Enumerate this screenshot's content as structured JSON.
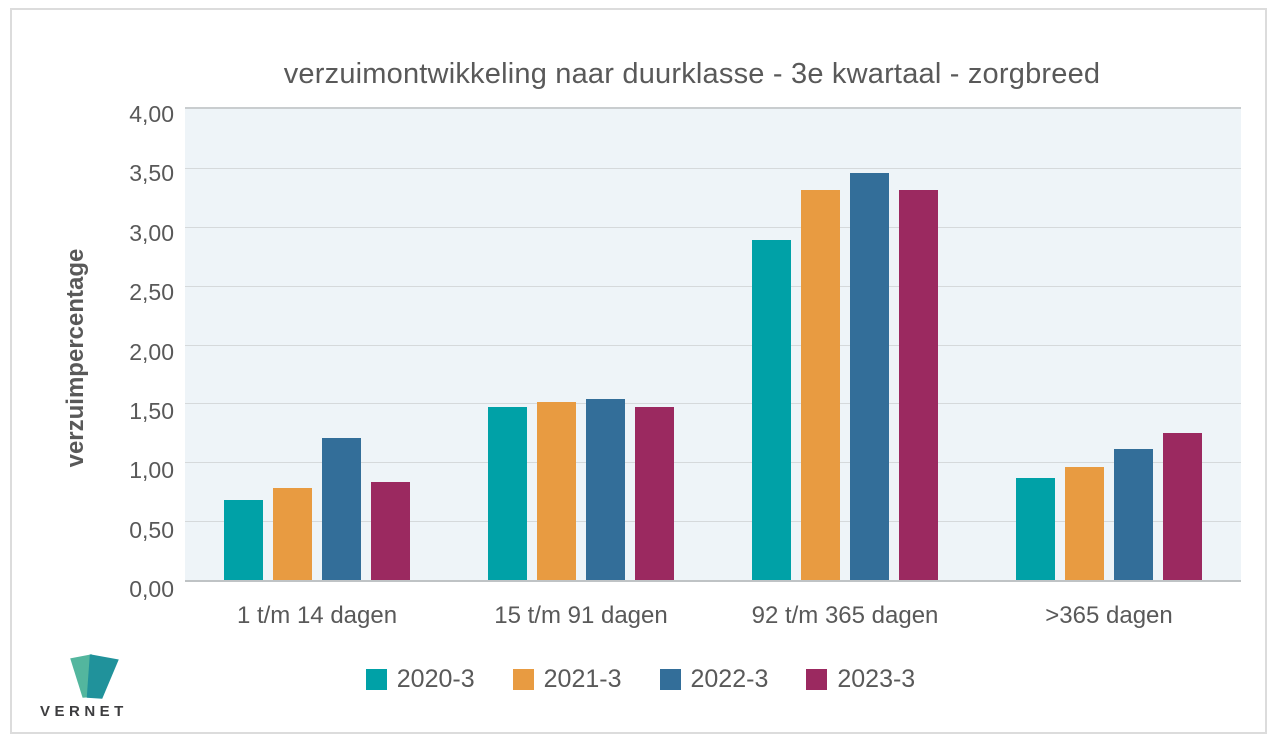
{
  "chart_data": {
    "type": "bar",
    "title": "verzuimontwikkeling naar duurklasse - 3e kwartaal - zorgbreed",
    "xlabel": "",
    "ylabel": "verzuimpercentage",
    "ylim": [
      0,
      4
    ],
    "ytick_step": 0.5,
    "ytick_labels_top_down": [
      "4,00",
      "3,50",
      "3,00",
      "2,50",
      "2,00",
      "1,50",
      "1,00",
      "0,50",
      "0,00"
    ],
    "grid": true,
    "legend_position": "bottom",
    "plot_background": "#eef4f8",
    "categories": [
      "1 t/m 14 dagen",
      "15 t/m 91 dagen",
      "92 t/m 365 dagen",
      ">365 dagen"
    ],
    "series": [
      {
        "name": "2020-3",
        "color": "#00a1a7",
        "values": [
          0.68,
          1.47,
          2.89,
          0.87
        ]
      },
      {
        "name": "2021-3",
        "color": "#e89b41",
        "values": [
          0.78,
          1.51,
          3.31,
          0.96
        ]
      },
      {
        "name": "2022-3",
        "color": "#336e99",
        "values": [
          1.21,
          1.54,
          3.46,
          1.11
        ]
      },
      {
        "name": "2023-3",
        "color": "#9b2960",
        "values": [
          0.83,
          1.47,
          3.31,
          1.25
        ]
      }
    ]
  },
  "branding": {
    "logo_text": "VERNET",
    "logo_color_light": "#53b69e",
    "logo_color_dark": "#20929b"
  }
}
